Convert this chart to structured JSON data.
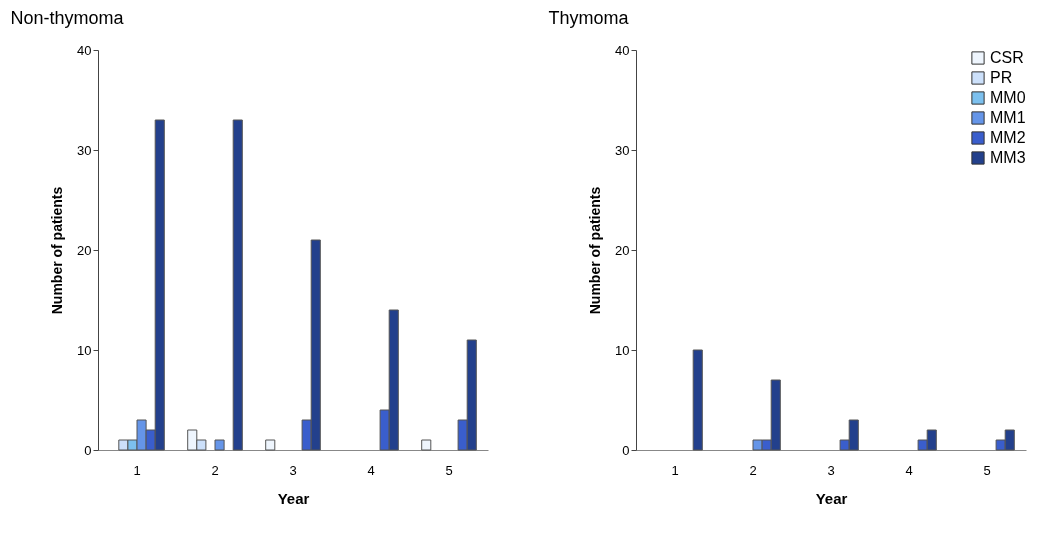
{
  "chart_data": [
    {
      "type": "bar",
      "title": "Non-thymoma",
      "xlabel": "Year",
      "ylabel": "Number of patients",
      "categories": [
        "1",
        "2",
        "3",
        "4",
        "5"
      ],
      "ylim": [
        0,
        40
      ],
      "yticks": [
        0,
        10,
        20,
        30,
        40
      ],
      "series": [
        {
          "color": "#eef5fd",
          "values": [
            0,
            2,
            1,
            0,
            1
          ]
        },
        {
          "color": "#cce0fa",
          "values": [
            1,
            1,
            0,
            0,
            0
          ]
        },
        {
          "color": "#7cc0ee",
          "values": [
            1,
            0,
            0,
            0,
            0
          ]
        },
        {
          "color": "#6595e8",
          "values": [
            3,
            1,
            0,
            0,
            0
          ]
        },
        {
          "color": "#3a5ecc",
          "values": [
            2,
            0,
            3,
            4,
            3
          ]
        },
        {
          "color": "#23408c",
          "values": [
            33,
            33,
            21,
            14,
            11
          ]
        }
      ]
    },
    {
      "type": "bar",
      "title": "Thymoma",
      "xlabel": "Year",
      "ylabel": "Number of patients",
      "categories": [
        "1",
        "2",
        "3",
        "4",
        "5"
      ],
      "ylim": [
        0,
        40
      ],
      "yticks": [
        0,
        10,
        20,
        30,
        40
      ],
      "legend": "top right",
      "series": [
        {
          "name": "CSR",
          "color": "#eef5fd",
          "values": [
            0,
            0,
            0,
            0,
            0
          ]
        },
        {
          "name": "PR",
          "color": "#cce0fa",
          "values": [
            0,
            0,
            0,
            0,
            0
          ]
        },
        {
          "name": "MM0",
          "color": "#7cc0ee",
          "values": [
            0,
            0,
            0,
            0,
            0
          ]
        },
        {
          "name": "MM1",
          "color": "#6595e8",
          "values": [
            0,
            1,
            0,
            0,
            0
          ]
        },
        {
          "name": "MM2",
          "color": "#3a5ecc",
          "values": [
            0,
            1,
            1,
            1,
            1
          ]
        },
        {
          "name": "MM3",
          "color": "#23408c",
          "values": [
            10,
            7,
            3,
            2,
            2
          ]
        }
      ]
    }
  ]
}
